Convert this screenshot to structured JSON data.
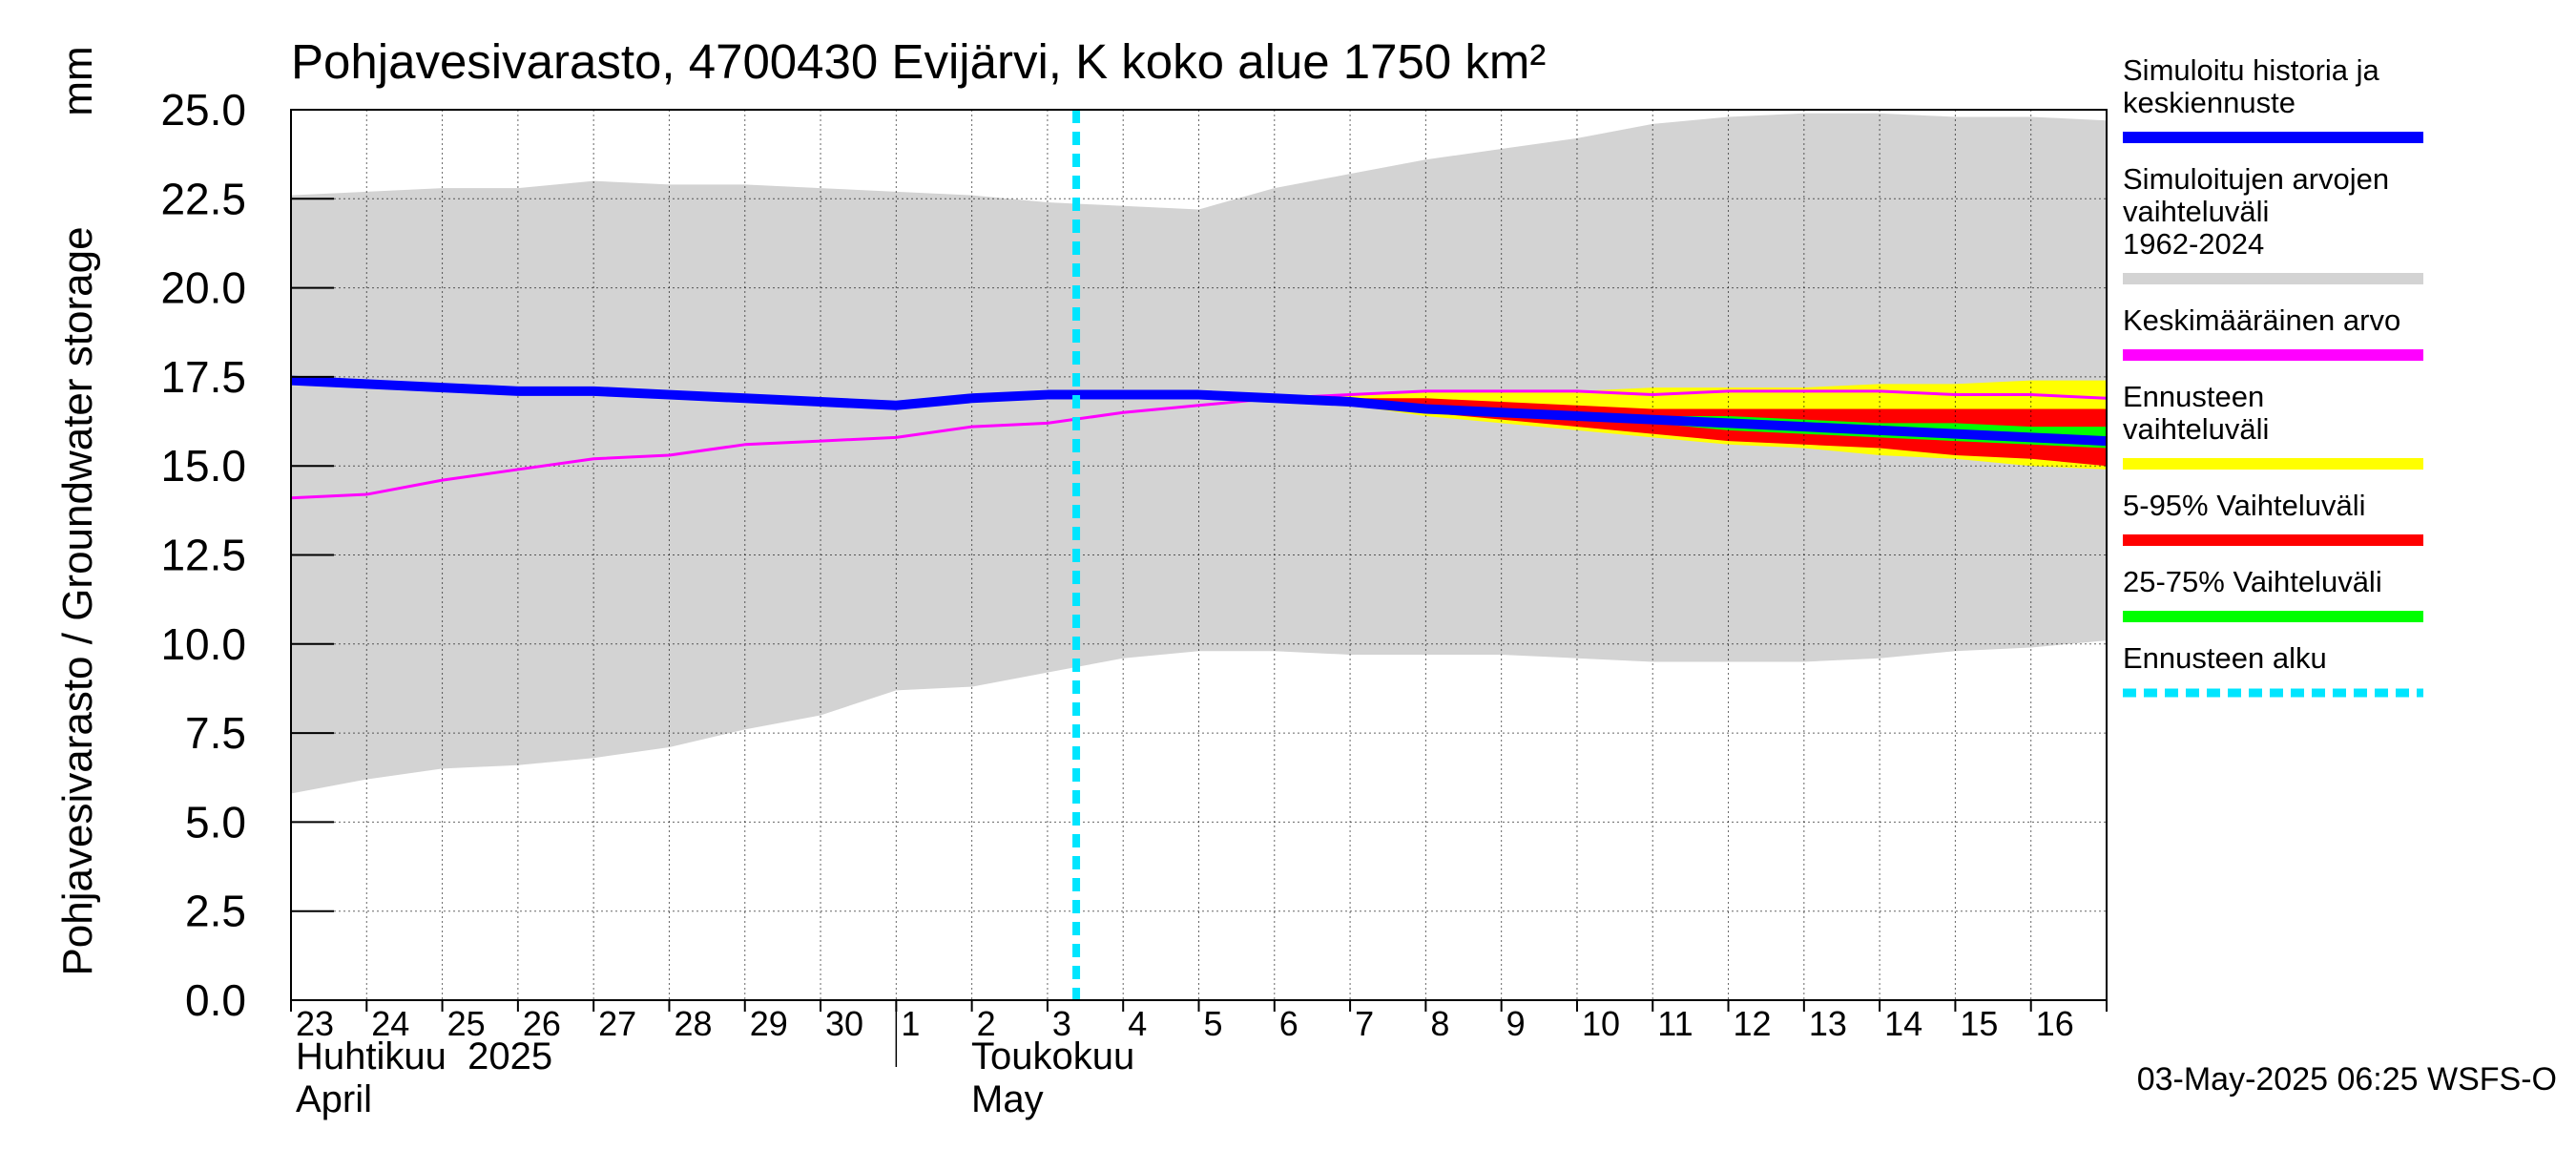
{
  "chart_data": {
    "type": "area",
    "title": "Pohjavesivarasto, 4700430 Evijärvi, K koko alue 1750 km²",
    "ylabel": "Pohjavesivarasto / Groundwater storage",
    "yunit": "mm",
    "ylim": [
      0,
      25
    ],
    "yticks": [
      "0.0",
      "2.5",
      "5.0",
      "7.5",
      "10.0",
      "12.5",
      "15.0",
      "17.5",
      "20.0",
      "22.5",
      "25.0"
    ],
    "x_start_date": "2025-04-23",
    "x_end_date": "2025-05-17",
    "x_tick_labels": [
      "23",
      "24",
      "25",
      "26",
      "27",
      "28",
      "29",
      "30",
      "1",
      "2",
      "3",
      "4",
      "5",
      "6",
      "7",
      "8",
      "9",
      "10",
      "11",
      "12",
      "13",
      "14",
      "15",
      "16"
    ],
    "month_labels": [
      {
        "fi": "Huhtikuu  2025",
        "en": "April"
      },
      {
        "fi": "Toukokuu",
        "en": "May"
      }
    ],
    "grid": true,
    "forecast_start": "2025-05-03",
    "footer": "03-May-2025 06:25 WSFS-O",
    "legend": {
      "placement": "right",
      "items": [
        {
          "label": "Simuloitu historia ja keskiennuste",
          "color": "#0000ff",
          "style": "solid"
        },
        {
          "label": "Simuloitujen arvojen vaihteluväli 1962-2024",
          "color": "#d3d3d3",
          "style": "solid"
        },
        {
          "label": "Keskimääräinen arvo",
          "color": "#ff00ff",
          "style": "solid"
        },
        {
          "label": "Ennusteen vaihteluväli",
          "color": "#ffff00",
          "style": "solid"
        },
        {
          "label": "5-95% Vaihteluväli",
          "color": "#ff0000",
          "style": "solid"
        },
        {
          "label": "25-75% Vaihteluväli",
          "color": "#00ff00",
          "style": "solid"
        },
        {
          "label": "Ennusteen alku",
          "color": "#00e5ff",
          "style": "dashed"
        }
      ]
    },
    "series": [
      {
        "name": "Simuloitujen arvojen vaihteluväli 1962-2024",
        "color": "#d3d3d3",
        "x": [
          "2025-04-23",
          "2025-04-24",
          "2025-04-25",
          "2025-04-26",
          "2025-04-27",
          "2025-04-28",
          "2025-04-29",
          "2025-04-30",
          "2025-05-01",
          "2025-05-02",
          "2025-05-03",
          "2025-05-04",
          "2025-05-05",
          "2025-05-06",
          "2025-05-07",
          "2025-05-08",
          "2025-05-09",
          "2025-05-10",
          "2025-05-11",
          "2025-05-12",
          "2025-05-13",
          "2025-05-14",
          "2025-05-15",
          "2025-05-16",
          "2025-05-17"
        ],
        "high": [
          22.6,
          22.7,
          22.8,
          22.8,
          23.0,
          22.9,
          22.9,
          22.8,
          22.7,
          22.6,
          22.4,
          22.3,
          22.2,
          22.8,
          23.2,
          23.6,
          23.9,
          24.2,
          24.6,
          24.8,
          24.9,
          24.9,
          24.8,
          24.8,
          24.7
        ],
        "low": [
          5.8,
          6.2,
          6.5,
          6.6,
          6.8,
          7.1,
          7.6,
          8.0,
          8.7,
          8.8,
          9.2,
          9.6,
          9.8,
          9.8,
          9.7,
          9.7,
          9.7,
          9.6,
          9.5,
          9.5,
          9.5,
          9.6,
          9.8,
          9.9,
          10.1
        ]
      },
      {
        "name": "Ennusteen vaihteluväli",
        "color": "#ffff00",
        "x": [
          "2025-05-06",
          "2025-05-07",
          "2025-05-08",
          "2025-05-09",
          "2025-05-10",
          "2025-05-11",
          "2025-05-12",
          "2025-05-13",
          "2025-05-14",
          "2025-05-15",
          "2025-05-16",
          "2025-05-17"
        ],
        "high": [
          16.9,
          17.0,
          17.1,
          17.1,
          17.1,
          17.2,
          17.2,
          17.2,
          17.3,
          17.3,
          17.4,
          17.4
        ],
        "low": [
          16.9,
          16.7,
          16.4,
          16.2,
          16.0,
          15.8,
          15.6,
          15.5,
          15.3,
          15.2,
          15.0,
          14.9
        ]
      },
      {
        "name": "5-95% Vaihteluväli",
        "color": "#ff0000",
        "x": [
          "2025-05-06",
          "2025-05-07",
          "2025-05-08",
          "2025-05-09",
          "2025-05-10",
          "2025-05-11",
          "2025-05-12",
          "2025-05-13",
          "2025-05-14",
          "2025-05-15",
          "2025-05-16",
          "2025-05-17"
        ],
        "high": [
          16.9,
          16.9,
          16.9,
          16.8,
          16.7,
          16.6,
          16.6,
          16.6,
          16.6,
          16.6,
          16.6,
          16.6
        ],
        "low": [
          16.9,
          16.7,
          16.5,
          16.3,
          16.1,
          15.9,
          15.7,
          15.6,
          15.5,
          15.3,
          15.2,
          15.0
        ]
      },
      {
        "name": "25-75% Vaihteluväli",
        "color": "#00ff00",
        "x": [
          "2025-05-06",
          "2025-05-07",
          "2025-05-08",
          "2025-05-09",
          "2025-05-10",
          "2025-05-11",
          "2025-05-12",
          "2025-05-13",
          "2025-05-14",
          "2025-05-15",
          "2025-05-16",
          "2025-05-17"
        ],
        "high": [
          16.9,
          16.8,
          16.7,
          16.6,
          16.5,
          16.4,
          16.4,
          16.3,
          16.2,
          16.2,
          16.1,
          16.1
        ],
        "low": [
          16.9,
          16.8,
          16.6,
          16.5,
          16.3,
          16.2,
          16.0,
          15.9,
          15.8,
          15.7,
          15.6,
          15.5
        ]
      },
      {
        "name": "Keskimääräinen arvo",
        "color": "#ff00ff",
        "x": [
          "2025-04-23",
          "2025-04-24",
          "2025-04-25",
          "2025-04-26",
          "2025-04-27",
          "2025-04-28",
          "2025-04-29",
          "2025-04-30",
          "2025-05-01",
          "2025-05-02",
          "2025-05-03",
          "2025-05-04",
          "2025-05-05",
          "2025-05-06",
          "2025-05-07",
          "2025-05-08",
          "2025-05-09",
          "2025-05-10",
          "2025-05-11",
          "2025-05-12",
          "2025-05-13",
          "2025-05-14",
          "2025-05-15",
          "2025-05-16",
          "2025-05-17"
        ],
        "values": [
          14.1,
          14.2,
          14.6,
          14.9,
          15.2,
          15.3,
          15.6,
          15.7,
          15.8,
          16.1,
          16.2,
          16.5,
          16.7,
          16.9,
          17.0,
          17.1,
          17.1,
          17.1,
          17.0,
          17.1,
          17.1,
          17.1,
          17.0,
          17.0,
          16.9
        ]
      },
      {
        "name": "Simuloitu historia ja keskiennuste",
        "color": "#0000ff",
        "x": [
          "2025-04-23",
          "2025-04-24",
          "2025-04-25",
          "2025-04-26",
          "2025-04-27",
          "2025-04-28",
          "2025-04-29",
          "2025-04-30",
          "2025-05-01",
          "2025-05-02",
          "2025-05-03",
          "2025-05-04",
          "2025-05-05",
          "2025-05-06",
          "2025-05-07",
          "2025-05-08",
          "2025-05-09",
          "2025-05-10",
          "2025-05-11",
          "2025-05-12",
          "2025-05-13",
          "2025-05-14",
          "2025-05-15",
          "2025-05-16",
          "2025-05-17"
        ],
        "values": [
          17.4,
          17.3,
          17.2,
          17.1,
          17.1,
          17.0,
          16.9,
          16.8,
          16.7,
          16.9,
          17.0,
          17.0,
          17.0,
          16.9,
          16.8,
          16.6,
          16.5,
          16.4,
          16.3,
          16.2,
          16.1,
          16.0,
          15.9,
          15.8,
          15.7
        ]
      }
    ]
  }
}
